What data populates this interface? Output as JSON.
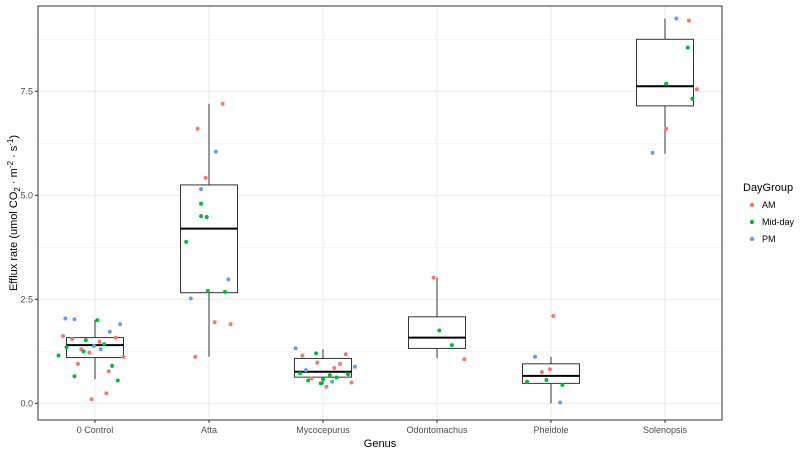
{
  "chart_data": {
    "type": "boxplot",
    "xlabel": "Genus",
    "ylabel_parts": {
      "pre": "Efflux rate (umol CO",
      "sub1": "2",
      "mid": " · m",
      "sup1": "-2",
      "mid2": " · s",
      "sup2": "-1",
      "post": ")"
    },
    "ylim": [
      -0.4,
      9.55
    ],
    "yticks": [
      0.0,
      2.5,
      5.0,
      7.5
    ],
    "ytick_labels": [
      "0.0",
      "2.5",
      "5.0",
      "7.5"
    ],
    "categories": [
      "0 Control",
      "Atta",
      "Mycocepurus",
      "Odontomachus",
      "Pheidole",
      "Solenopsis"
    ],
    "grid": true,
    "legend": {
      "title": "DayGroup",
      "position": "right",
      "entries": [
        {
          "label": "AM",
          "color": "#F8766D"
        },
        {
          "label": "Mid-day",
          "color": "#00BA38"
        },
        {
          "label": "PM",
          "color": "#619CFF"
        }
      ]
    },
    "boxes": [
      {
        "category": "0 Control",
        "whisker_low": 0.58,
        "q1": 1.1,
        "median": 1.4,
        "q3": 1.58,
        "whisker_high": 2.0
      },
      {
        "category": "Atta",
        "whisker_low": 1.12,
        "q1": 2.66,
        "median": 4.2,
        "q3": 5.25,
        "whisker_high": 7.2
      },
      {
        "category": "Mycocepurus",
        "whisker_low": 0.45,
        "q1": 0.63,
        "median": 0.76,
        "q3": 1.08,
        "whisker_high": 1.3
      },
      {
        "category": "Odontomachus",
        "whisker_low": 1.08,
        "q1": 1.32,
        "median": 1.58,
        "q3": 2.08,
        "whisker_high": 3.02
      },
      {
        "category": "Pheidole",
        "whisker_low": 0.0,
        "q1": 0.48,
        "median": 0.66,
        "q3": 0.95,
        "whisker_high": 1.12
      },
      {
        "category": "Solenopsis",
        "whisker_low": 6.0,
        "q1": 7.15,
        "median": 7.62,
        "q3": 8.75,
        "whisker_high": 9.25
      }
    ],
    "points": [
      {
        "category": "0 Control",
        "jitter": -0.28,
        "y": 1.62,
        "group": "AM"
      },
      {
        "category": "0 Control",
        "jitter": -0.2,
        "y": 1.55,
        "group": "AM"
      },
      {
        "category": "0 Control",
        "jitter": -0.12,
        "y": 1.3,
        "group": "AM"
      },
      {
        "category": "0 Control",
        "jitter": -0.05,
        "y": 1.22,
        "group": "AM"
      },
      {
        "category": "0 Control",
        "jitter": 0.04,
        "y": 1.48,
        "group": "AM"
      },
      {
        "category": "0 Control",
        "jitter": 0.12,
        "y": 0.77,
        "group": "AM"
      },
      {
        "category": "0 Control",
        "jitter": 0.25,
        "y": 1.12,
        "group": "AM"
      },
      {
        "category": "0 Control",
        "jitter": -0.03,
        "y": 0.1,
        "group": "AM"
      },
      {
        "category": "0 Control",
        "jitter": 0.1,
        "y": 0.24,
        "group": "AM"
      },
      {
        "category": "0 Control",
        "jitter": 0.18,
        "y": 1.58,
        "group": "AM"
      },
      {
        "category": "0 Control",
        "jitter": -0.15,
        "y": 0.95,
        "group": "AM"
      },
      {
        "category": "0 Control",
        "jitter": -0.32,
        "y": 1.15,
        "group": "Mid-day"
      },
      {
        "category": "0 Control",
        "jitter": -0.25,
        "y": 1.35,
        "group": "Mid-day"
      },
      {
        "category": "0 Control",
        "jitter": -0.18,
        "y": 0.65,
        "group": "Mid-day"
      },
      {
        "category": "0 Control",
        "jitter": -0.08,
        "y": 1.52,
        "group": "Mid-day"
      },
      {
        "category": "0 Control",
        "jitter": 0.02,
        "y": 2.0,
        "group": "Mid-day"
      },
      {
        "category": "0 Control",
        "jitter": 0.08,
        "y": 1.42,
        "group": "Mid-day"
      },
      {
        "category": "0 Control",
        "jitter": 0.15,
        "y": 0.9,
        "group": "Mid-day"
      },
      {
        "category": "0 Control",
        "jitter": 0.2,
        "y": 0.55,
        "group": "Mid-day"
      },
      {
        "category": "0 Control",
        "jitter": -0.1,
        "y": 1.25,
        "group": "Mid-day"
      },
      {
        "category": "0 Control",
        "jitter": -0.26,
        "y": 2.04,
        "group": "PM"
      },
      {
        "category": "0 Control",
        "jitter": -0.18,
        "y": 2.02,
        "group": "PM"
      },
      {
        "category": "0 Control",
        "jitter": 0.05,
        "y": 1.3,
        "group": "PM"
      },
      {
        "category": "0 Control",
        "jitter": 0.13,
        "y": 1.72,
        "group": "PM"
      },
      {
        "category": "0 Control",
        "jitter": 0.22,
        "y": 1.9,
        "group": "PM"
      },
      {
        "category": "0 Control",
        "jitter": -0.01,
        "y": 1.38,
        "group": "PM"
      },
      {
        "category": "Atta",
        "jitter": -0.1,
        "y": 6.6,
        "group": "AM"
      },
      {
        "category": "Atta",
        "jitter": 0.12,
        "y": 7.2,
        "group": "AM"
      },
      {
        "category": "Atta",
        "jitter": -0.03,
        "y": 5.42,
        "group": "AM"
      },
      {
        "category": "Atta",
        "jitter": 0.05,
        "y": 1.95,
        "group": "AM"
      },
      {
        "category": "Atta",
        "jitter": 0.19,
        "y": 1.9,
        "group": "AM"
      },
      {
        "category": "Atta",
        "jitter": -0.12,
        "y": 1.12,
        "group": "AM"
      },
      {
        "category": "Atta",
        "jitter": -0.07,
        "y": 4.8,
        "group": "Mid-day"
      },
      {
        "category": "Atta",
        "jitter": -0.07,
        "y": 4.5,
        "group": "Mid-day"
      },
      {
        "category": "Atta",
        "jitter": -0.02,
        "y": 4.48,
        "group": "Mid-day"
      },
      {
        "category": "Atta",
        "jitter": -0.2,
        "y": 3.88,
        "group": "Mid-day"
      },
      {
        "category": "Atta",
        "jitter": -0.01,
        "y": 2.7,
        "group": "Mid-day"
      },
      {
        "category": "Atta",
        "jitter": 0.14,
        "y": 2.68,
        "group": "Mid-day"
      },
      {
        "category": "Atta",
        "jitter": 0.06,
        "y": 6.05,
        "group": "PM"
      },
      {
        "category": "Atta",
        "jitter": -0.07,
        "y": 5.15,
        "group": "PM"
      },
      {
        "category": "Atta",
        "jitter": 0.17,
        "y": 2.98,
        "group": "PM"
      },
      {
        "category": "Atta",
        "jitter": -0.16,
        "y": 2.52,
        "group": "PM"
      },
      {
        "category": "Mycocepurus",
        "jitter": -0.18,
        "y": 1.15,
        "group": "AM"
      },
      {
        "category": "Mycocepurus",
        "jitter": -0.05,
        "y": 0.98,
        "group": "AM"
      },
      {
        "category": "Mycocepurus",
        "jitter": 0.1,
        "y": 0.85,
        "group": "AM"
      },
      {
        "category": "Mycocepurus",
        "jitter": 0.2,
        "y": 1.18,
        "group": "AM"
      },
      {
        "category": "Mycocepurus",
        "jitter": 0.15,
        "y": 0.95,
        "group": "AM"
      },
      {
        "category": "Mycocepurus",
        "jitter": -0.1,
        "y": 0.6,
        "group": "AM"
      },
      {
        "category": "Mycocepurus",
        "jitter": 0.03,
        "y": 0.4,
        "group": "AM"
      },
      {
        "category": "Mycocepurus",
        "jitter": 0.25,
        "y": 0.5,
        "group": "AM"
      },
      {
        "category": "Mycocepurus",
        "jitter": -0.2,
        "y": 0.72,
        "group": "Mid-day"
      },
      {
        "category": "Mycocepurus",
        "jitter": -0.13,
        "y": 0.55,
        "group": "Mid-day"
      },
      {
        "category": "Mycocepurus",
        "jitter": -0.02,
        "y": 0.48,
        "group": "Mid-day"
      },
      {
        "category": "Mycocepurus",
        "jitter": 0.06,
        "y": 0.68,
        "group": "Mid-day"
      },
      {
        "category": "Mycocepurus",
        "jitter": 0.12,
        "y": 0.62,
        "group": "Mid-day"
      },
      {
        "category": "Mycocepurus",
        "jitter": 0.22,
        "y": 0.7,
        "group": "Mid-day"
      },
      {
        "category": "Mycocepurus",
        "jitter": -0.06,
        "y": 1.2,
        "group": "Mid-day"
      },
      {
        "category": "Mycocepurus",
        "jitter": 0.0,
        "y": 0.58,
        "group": "Mid-day"
      },
      {
        "category": "Mycocepurus",
        "jitter": -0.24,
        "y": 1.32,
        "group": "PM"
      },
      {
        "category": "Mycocepurus",
        "jitter": -0.15,
        "y": 0.8,
        "group": "PM"
      },
      {
        "category": "Mycocepurus",
        "jitter": 0.08,
        "y": 0.52,
        "group": "PM"
      },
      {
        "category": "Mycocepurus",
        "jitter": 0.28,
        "y": 0.88,
        "group": "PM"
      },
      {
        "category": "Odontomachus",
        "jitter": -0.03,
        "y": 3.02,
        "group": "AM"
      },
      {
        "category": "Odontomachus",
        "jitter": 0.24,
        "y": 1.06,
        "group": "AM"
      },
      {
        "category": "Odontomachus",
        "jitter": 0.02,
        "y": 1.75,
        "group": "Mid-day"
      },
      {
        "category": "Odontomachus",
        "jitter": 0.13,
        "y": 1.4,
        "group": "Mid-day"
      },
      {
        "category": "Pheidole",
        "jitter": 0.02,
        "y": 2.1,
        "group": "AM"
      },
      {
        "category": "Pheidole",
        "jitter": -0.08,
        "y": 0.75,
        "group": "AM"
      },
      {
        "category": "Pheidole",
        "jitter": -0.01,
        "y": 0.82,
        "group": "AM"
      },
      {
        "category": "Pheidole",
        "jitter": -0.21,
        "y": 0.52,
        "group": "Mid-day"
      },
      {
        "category": "Pheidole",
        "jitter": -0.04,
        "y": 0.56,
        "group": "Mid-day"
      },
      {
        "category": "Pheidole",
        "jitter": 0.1,
        "y": 0.44,
        "group": "Mid-day"
      },
      {
        "category": "Pheidole",
        "jitter": -0.14,
        "y": 1.12,
        "group": "PM"
      },
      {
        "category": "Pheidole",
        "jitter": 0.08,
        "y": 0.02,
        "group": "PM"
      },
      {
        "category": "Solenopsis",
        "jitter": 0.21,
        "y": 9.2,
        "group": "AM"
      },
      {
        "category": "Solenopsis",
        "jitter": 0.01,
        "y": 6.6,
        "group": "AM"
      },
      {
        "category": "Solenopsis",
        "jitter": 0.28,
        "y": 7.55,
        "group": "AM"
      },
      {
        "category": "Solenopsis",
        "jitter": 0.2,
        "y": 8.55,
        "group": "Mid-day"
      },
      {
        "category": "Solenopsis",
        "jitter": 0.01,
        "y": 7.68,
        "group": "Mid-day"
      },
      {
        "category": "Solenopsis",
        "jitter": 0.24,
        "y": 7.32,
        "group": "Mid-day"
      },
      {
        "category": "Solenopsis",
        "jitter": 0.1,
        "y": 9.25,
        "group": "PM"
      },
      {
        "category": "Solenopsis",
        "jitter": -0.11,
        "y": 6.02,
        "group": "PM"
      }
    ]
  }
}
